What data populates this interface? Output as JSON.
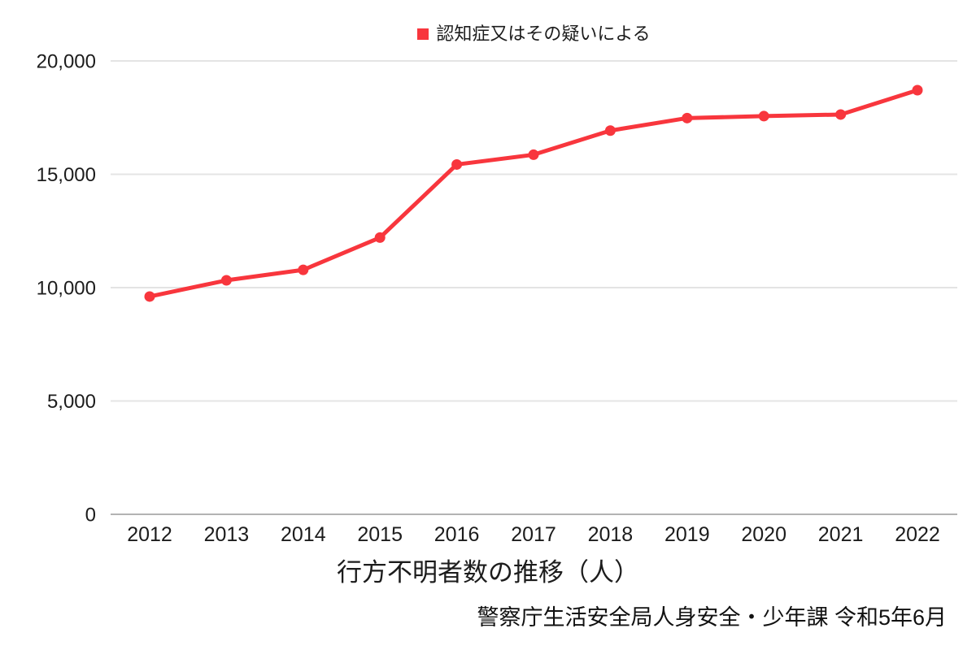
{
  "title": "行方不明者数の推移（人）",
  "source": "警察庁生活安全局人身安全・少年課 令和5年6月",
  "legend": {
    "label": "認知症又はその疑いによる"
  },
  "colors": {
    "line": "#f8363d",
    "point": "#f8363d",
    "legend_marker": "#f8363d",
    "grid": "#e4e4e4",
    "axis": "#b3b3b3",
    "text": "#1c1c1c"
  },
  "chart_data": {
    "type": "line",
    "title": "行方不明者数の推移（人）",
    "xlabel": "",
    "ylabel": "",
    "categories": [
      "2012",
      "2013",
      "2014",
      "2015",
      "2016",
      "2017",
      "2018",
      "2019",
      "2020",
      "2021",
      "2022"
    ],
    "series": [
      {
        "name": "認知症又はその疑いによる",
        "values": [
          9607,
          10322,
          10783,
          12208,
          15432,
          15863,
          16927,
          17479,
          17565,
          17636,
          18709
        ]
      }
    ],
    "ylim": [
      0,
      20000
    ],
    "yticks": [
      0,
      5000,
      10000,
      15000,
      20000
    ],
    "ytick_labels": [
      "0",
      "5,000",
      "10,000",
      "15,000",
      "20,000"
    ],
    "grid": "horizontal",
    "legend_position": "top-center",
    "source_note": "警察庁生活安全局人身安全・少年課 令和5年6月"
  }
}
